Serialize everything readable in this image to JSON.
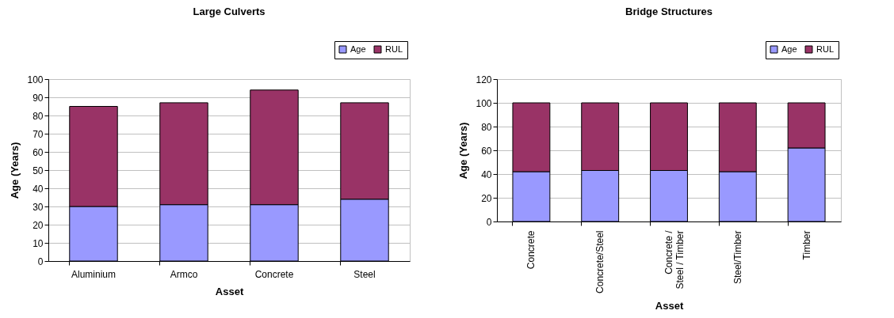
{
  "chart_data": [
    {
      "type": "bar",
      "title": "Large Culverts",
      "xlabel": "Asset",
      "ylabel": "Age (Years)",
      "stacked": true,
      "grid": "y",
      "legend": "top right",
      "categories": [
        "Aluminium",
        "Armco",
        "Concrete",
        "Steel"
      ],
      "series": [
        {
          "name": "Age",
          "color": "#9999ff",
          "values": [
            30,
            31,
            31,
            34
          ]
        },
        {
          "name": "RUL",
          "color": "#993366",
          "values": [
            55,
            56,
            63,
            53
          ]
        }
      ],
      "ylim": [
        0,
        100
      ],
      "yticks": [
        0,
        10,
        20,
        30,
        40,
        50,
        60,
        70,
        80,
        90,
        100
      ]
    },
    {
      "type": "bar",
      "title": "Bridge Structures",
      "xlabel": "Asset",
      "ylabel": "Age (Years)",
      "stacked": true,
      "grid": "y",
      "legend": "top right",
      "categories": [
        "Concrete",
        "Concrete/Steel",
        "Concrete / Steel / Timber",
        "Steel/Timber",
        "Timber"
      ],
      "series": [
        {
          "name": "Age",
          "color": "#9999ff",
          "values": [
            42,
            43,
            43,
            42,
            62
          ]
        },
        {
          "name": "RUL",
          "color": "#993366",
          "values": [
            58,
            57,
            57,
            58,
            38
          ]
        }
      ],
      "ylim": [
        0,
        120
      ],
      "yticks": [
        0,
        20,
        40,
        60,
        80,
        100,
        120
      ]
    }
  ]
}
